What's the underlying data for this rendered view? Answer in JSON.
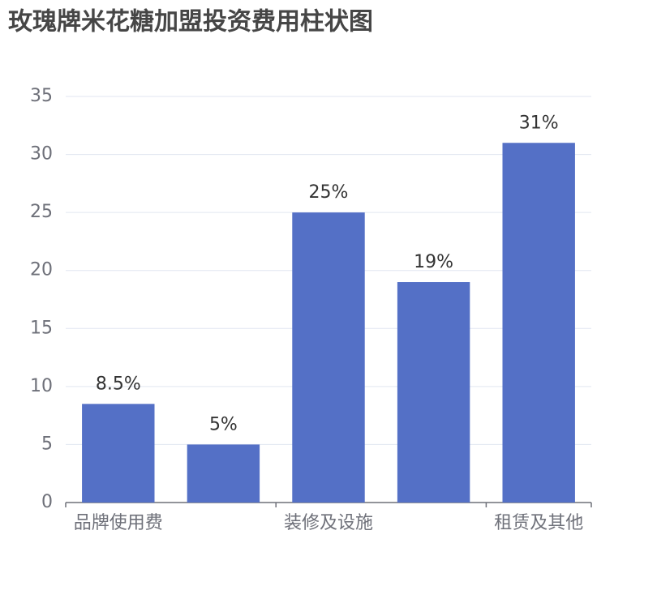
{
  "chart_data": {
    "type": "bar",
    "title": "玫瑰牌米花糖加盟投资费用柱状图",
    "categories": [
      "品牌使用费",
      null,
      "装修及设施",
      null,
      "租赁及其他"
    ],
    "values": [
      8.5,
      5,
      25,
      19,
      31
    ],
    "value_labels": [
      "8.5%",
      "5%",
      "25%",
      "19%",
      "31%"
    ],
    "color": "#5470c6",
    "ylim": [
      0,
      35
    ],
    "yticks": [
      0,
      5,
      10,
      15,
      20,
      25,
      30,
      35
    ],
    "grid": true
  }
}
